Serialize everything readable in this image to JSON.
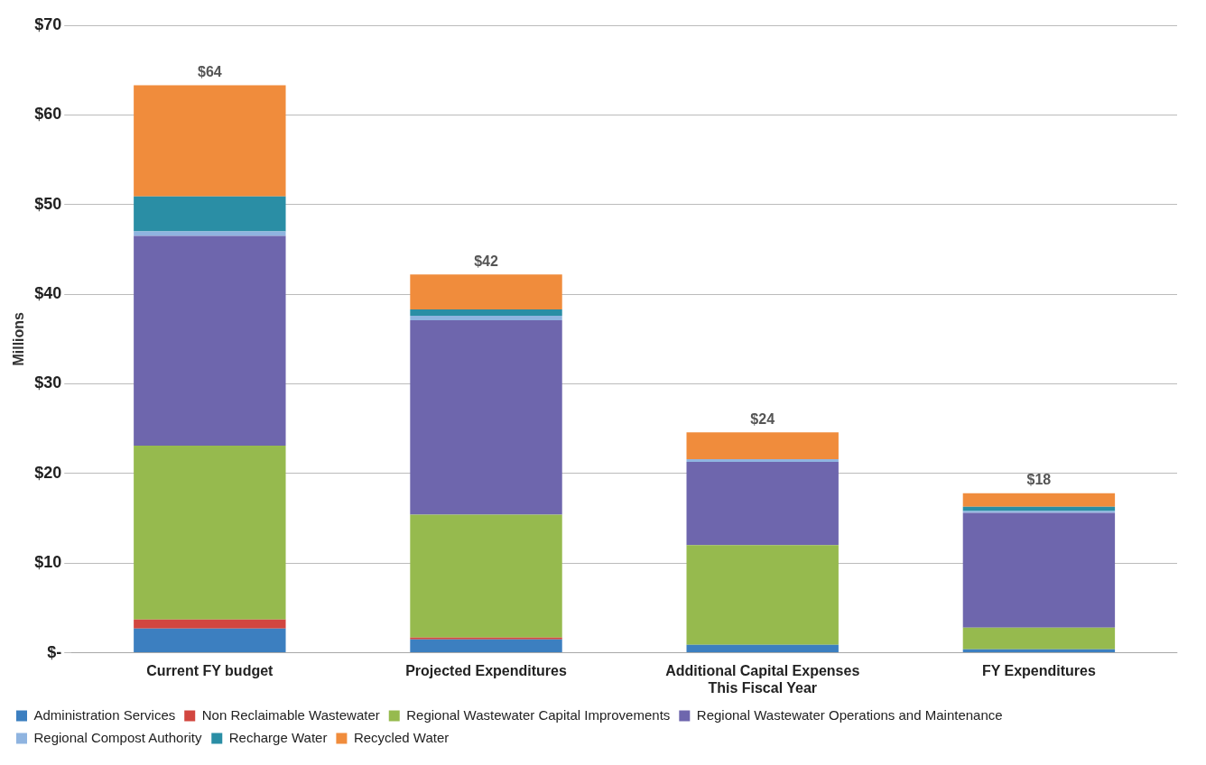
{
  "chart_data": {
    "type": "bar",
    "stacked": true,
    "ylabel": "Millions",
    "categories": [
      "Current FY budget",
      "Projected Expenditures",
      "Additional Capital Expenses This Fiscal Year",
      "FY Expenditures"
    ],
    "series": [
      {
        "name": "Administration Services",
        "color": "#3c7fc0",
        "values": [
          2.7,
          1.5,
          0.9,
          0.4
        ]
      },
      {
        "name": "Non Reclaimable Wastewater",
        "color": "#d2463f",
        "values": [
          1,
          0.2,
          0,
          0
        ]
      },
      {
        "name": "Regional Wastewater Capital Improvements",
        "color": "#96ba4e",
        "values": [
          19.4,
          13.7,
          11.1,
          2.4
        ]
      },
      {
        "name": "Regional Wastewater Operations and Maintenance",
        "color": "#6e66ad",
        "values": [
          23.4,
          21.7,
          9.3,
          12.8
        ]
      },
      {
        "name": "Regional Compost Authority",
        "color": "#8fb4e0",
        "values": [
          0.5,
          0.5,
          0.3,
          0.2
        ]
      },
      {
        "name": "Recharge Water",
        "color": "#2a8ea5",
        "values": [
          3.9,
          0.7,
          0,
          0.5
        ]
      },
      {
        "name": "Recycled Water",
        "color": "#f08c3c",
        "values": [
          12.4,
          3.9,
          3.0,
          1.5
        ]
      }
    ],
    "totals": [
      "$64",
      "$42",
      "$24",
      "$18"
    ],
    "ylim": [
      0,
      70
    ],
    "yticks": [
      {
        "value": 0,
        "label": "$-"
      },
      {
        "value": 10,
        "label": "$10"
      },
      {
        "value": 20,
        "label": "$20"
      },
      {
        "value": 30,
        "label": "$30"
      },
      {
        "value": 40,
        "label": "$40"
      },
      {
        "value": 50,
        "label": "$50"
      },
      {
        "value": 60,
        "label": "$60"
      },
      {
        "value": 70,
        "label": "$70"
      }
    ],
    "grid": "y",
    "legend": "bottom"
  }
}
